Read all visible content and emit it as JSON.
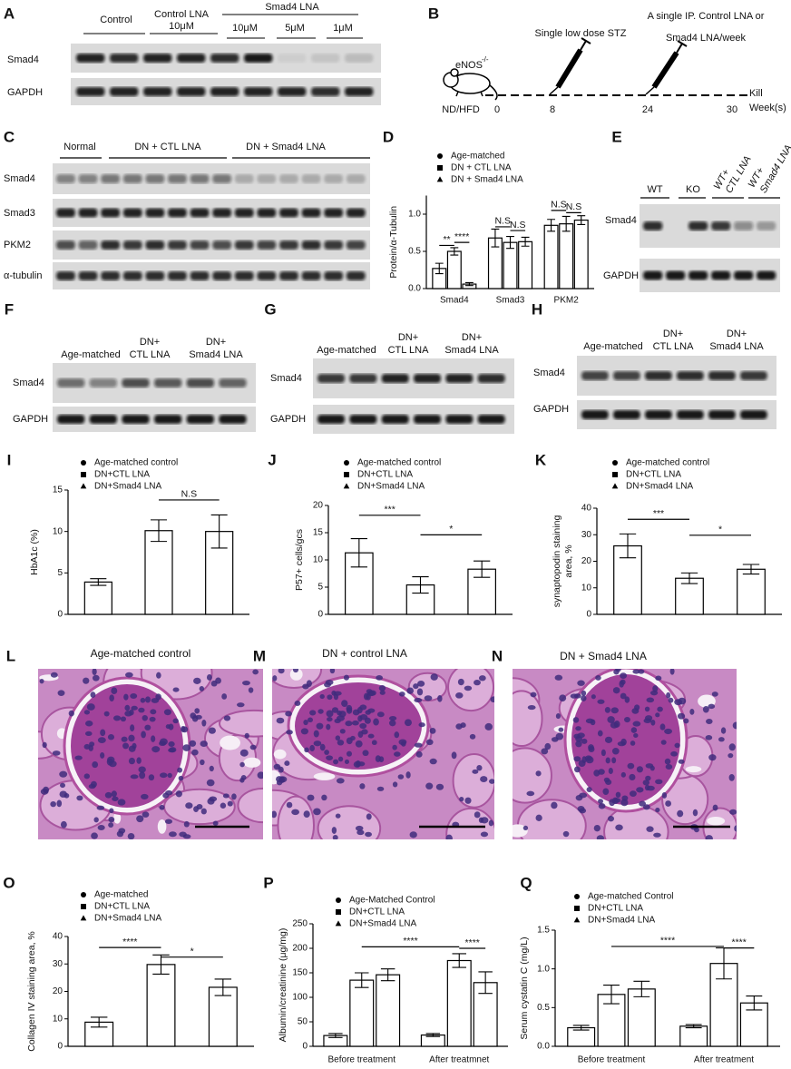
{
  "panel_letters": [
    "A",
    "B",
    "C",
    "D",
    "E",
    "F",
    "G",
    "H",
    "I",
    "J",
    "K",
    "L",
    "M",
    "N",
    "O",
    "P",
    "Q"
  ],
  "blot_a": {
    "headers": [
      "Control",
      "Control LNA",
      "10μM",
      "Smad4 LNA",
      "10μM",
      "5μM",
      "1μM"
    ],
    "rows": [
      "Smad4",
      "GAPDH"
    ]
  },
  "schematic_b": {
    "strain": "eNOS",
    "genotype": "-/-",
    "diet": "ND/HFD",
    "weeks": [
      0,
      8,
      24,
      30
    ],
    "stz": "Single low dose STZ",
    "injection": [
      "A single IP. Control LNA or",
      "Smad4 LNA/week"
    ],
    "end": [
      "Kill",
      "Week(s)"
    ]
  },
  "blot_c": {
    "headers": [
      "Normal",
      "DN + CTL LNA",
      "DN + Smad4 LNA"
    ],
    "rows": [
      "Smad4",
      "Smad3",
      "PKM2",
      "α-tubulin"
    ]
  },
  "blot_e": {
    "headers": [
      "WT",
      "KO",
      "WT+",
      "CTL LNA",
      "WT+",
      "Smad4 LNA"
    ],
    "rows": [
      "Smad4",
      "GAPDH"
    ]
  },
  "blot_f": {
    "headers": [
      "Age-matched",
      "DN+",
      "CTL LNA",
      "DN+",
      "Smad4 LNA"
    ],
    "rows": [
      "Smad4",
      "GAPDH"
    ]
  },
  "blot_g": {
    "headers": [
      "Age-matched",
      "DN+",
      "CTL LNA",
      "DN+",
      "Smad4 LNA"
    ],
    "rows": [
      "Smad4",
      "GAPDH"
    ]
  },
  "blot_h": {
    "headers": [
      "Age-matched",
      "DN+",
      "CTL LNA",
      "DN+",
      "Smad4 LNA"
    ],
    "rows": [
      "Smad4",
      "GAPDH"
    ]
  },
  "histology": {
    "titles": [
      "Age-matched control",
      "DN + control LNA",
      "DN + Smad4 LNA"
    ]
  },
  "chart_data": [
    {
      "type": "grouped_bar",
      "ylabel": "Protein/α-Tubulin",
      "color": "#000000",
      "categories": [
        "Smad4",
        "Smad3",
        "PKM2"
      ],
      "series": [
        {
          "name": "Age-matched",
          "values": [
            0.27,
            0.68,
            0.85
          ],
          "errors": [
            0.07,
            0.12,
            0.08
          ]
        },
        {
          "name": "DN + CTL LNA",
          "values": [
            0.5,
            0.62,
            0.87
          ],
          "errors": [
            0.05,
            0.08,
            0.1
          ]
        },
        {
          "name": "DN + Smad4 LNA",
          "values": [
            0.06,
            0.63,
            0.92
          ],
          "errors": [
            0.02,
            0.06,
            0.06
          ]
        }
      ],
      "ylim": [
        0,
        1.25
      ],
      "yticks": [
        {
          "value": 0,
          "label": "0.0"
        },
        0.5,
        {
          "value": 1,
          "label": "1.0"
        }
      ],
      "annotations": [
        "**",
        "****",
        "N.S",
        "N.S",
        "N.S",
        "N.S"
      ]
    },
    {
      "type": "bar",
      "ylabel": "HbA1c (%)",
      "color": "#000000",
      "categories": [
        null,
        null,
        null
      ],
      "legend": [
        "Age-matched control",
        "DN+CTL LNA",
        "DN+Smad4 LNA"
      ],
      "values": [
        3.9,
        10.1,
        10.0
      ],
      "errors": [
        0.4,
        1.3,
        2.0
      ],
      "ylim": [
        0,
        15
      ],
      "yticks": [
        0,
        5,
        10,
        15
      ],
      "annotations": [
        "N.S"
      ]
    },
    {
      "type": "bar",
      "ylabel": "P57+ cells/gcs",
      "color": "#000000",
      "categories": [
        null,
        null,
        null
      ],
      "legend": [
        "Age-matched control",
        "DN+CTL LNA",
        "DN+Smad4 LNA"
      ],
      "values": [
        11.3,
        5.4,
        8.3
      ],
      "errors": [
        2.6,
        1.5,
        1.5
      ],
      "ylim": [
        0,
        20
      ],
      "yticks": [
        0,
        5,
        10,
        15,
        20
      ],
      "annotations": [
        "***",
        "*"
      ]
    },
    {
      "type": "bar",
      "ylabel": [
        "synaptopodin staining",
        "area, %"
      ],
      "color": "#000000",
      "categories": [
        null,
        null,
        null
      ],
      "legend": [
        "Age-matched control",
        "DN+CTL LNA",
        "DN+Smad4 LNA"
      ],
      "values": [
        25.8,
        13.6,
        17.0
      ],
      "errors": [
        4.5,
        2.0,
        1.8
      ],
      "ylim": [
        0,
        40
      ],
      "yticks": [
        0,
        10,
        20,
        30,
        40
      ],
      "annotations": [
        "***",
        "*"
      ]
    },
    {
      "type": "bar",
      "ylabel": "Collagen IV staining area, %",
      "color": "#000000",
      "categories": [
        null,
        null,
        null
      ],
      "legend": [
        "Age-matched",
        "DN+CTL LNA",
        "DN+Smad4 LNA"
      ],
      "values": [
        8.8,
        29.8,
        21.5
      ],
      "errors": [
        1.8,
        3.5,
        3.0
      ],
      "ylim": [
        0,
        40
      ],
      "yticks": [
        0,
        10,
        20,
        30,
        40
      ],
      "annotations": [
        "****",
        "*"
      ]
    },
    {
      "type": "grouped_bar",
      "ylabel": "Albumin/creatinine (μg/mg)",
      "color": "#000000",
      "categories": [
        "Before treatment",
        "After treatmnet"
      ],
      "series": [
        {
          "name": "Age-Matched Control",
          "values": [
            22,
            23
          ],
          "errors": [
            4,
            3
          ]
        },
        {
          "name": "DN+CTL LNA",
          "values": [
            135,
            175
          ],
          "errors": [
            15,
            14
          ]
        },
        {
          "name": "DN+Smad4 LNA",
          "values": [
            146,
            130
          ],
          "errors": [
            12,
            22
          ]
        }
      ],
      "ylim": [
        0,
        250
      ],
      "yticks": [
        0,
        50,
        100,
        150,
        200,
        250
      ],
      "annotations": [
        "****",
        "****"
      ]
    },
    {
      "type": "grouped_bar",
      "ylabel": "Serum cystatin C (mg/L)",
      "color": "#000000",
      "categories": [
        "Before treatment",
        "After treatment"
      ],
      "series": [
        {
          "name": "Age-matched Control",
          "values": [
            0.24,
            0.26
          ],
          "errors": [
            0.03,
            0.02
          ]
        },
        {
          "name": "DN+CTL LNA",
          "values": [
            0.67,
            1.07
          ],
          "errors": [
            0.12,
            0.2
          ]
        },
        {
          "name": "DN+Smad4 LNA",
          "values": [
            0.74,
            0.56
          ],
          "errors": [
            0.1,
            0.09
          ]
        }
      ],
      "ylim": [
        0,
        1.5
      ],
      "yticks": [
        {
          "value": 0,
          "label": "0.0"
        },
        0.5,
        {
          "value": 1,
          "label": "1.0"
        },
        1.5
      ],
      "annotations": [
        "****",
        "****"
      ]
    }
  ]
}
